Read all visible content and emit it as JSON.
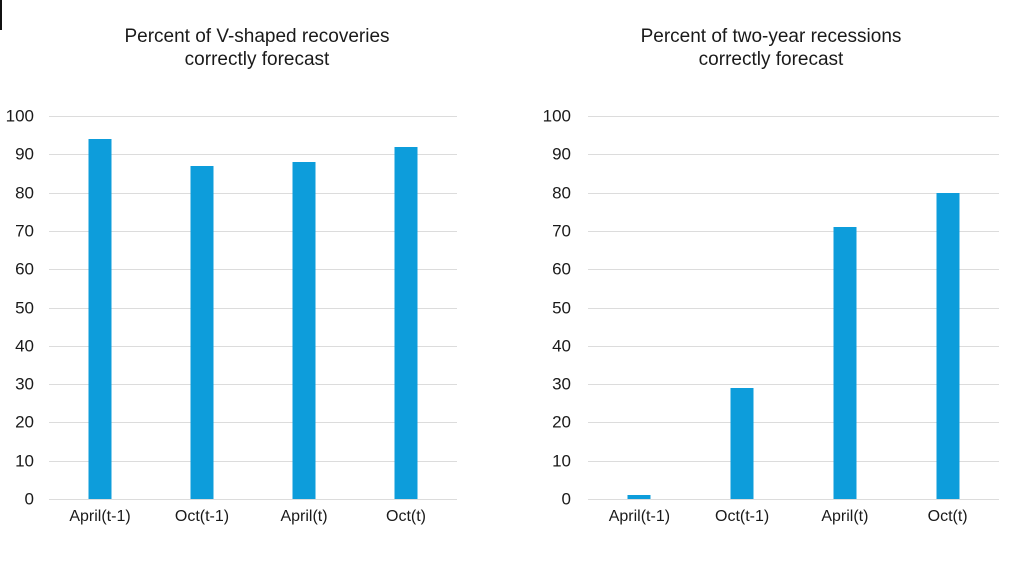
{
  "chart_data": [
    {
      "type": "bar",
      "title": "Percent of V-shaped recoveries correctly forecast",
      "title_lines": [
        "Percent of V-shaped recoveries",
        "correctly forecast"
      ],
      "categories": [
        "April(t-1)",
        "Oct(t-1)",
        "April(t)",
        "Oct(t)"
      ],
      "values": [
        94,
        87,
        88,
        92
      ],
      "xlabel": "",
      "ylabel": "",
      "ylim": [
        0,
        100
      ],
      "ytick_step": 10,
      "grid": true,
      "legend": "none"
    },
    {
      "type": "bar",
      "title": "Percent of two-year recessions correctly forecast",
      "title_lines": [
        "Percent of two-year recessions",
        "correctly forecast"
      ],
      "categories": [
        "April(t-1)",
        "Oct(t-1)",
        "April(t)",
        "Oct(t)"
      ],
      "values": [
        1,
        29,
        71,
        80
      ],
      "xlabel": "",
      "ylabel": "",
      "ylim": [
        0,
        100
      ],
      "ytick_step": 10,
      "grid": true,
      "legend": "none"
    }
  ],
  "colors": {
    "bar": "#0d9ddb",
    "gridline": "#dcdcdc",
    "text": "#1a1a1a",
    "background": "#ffffff"
  }
}
